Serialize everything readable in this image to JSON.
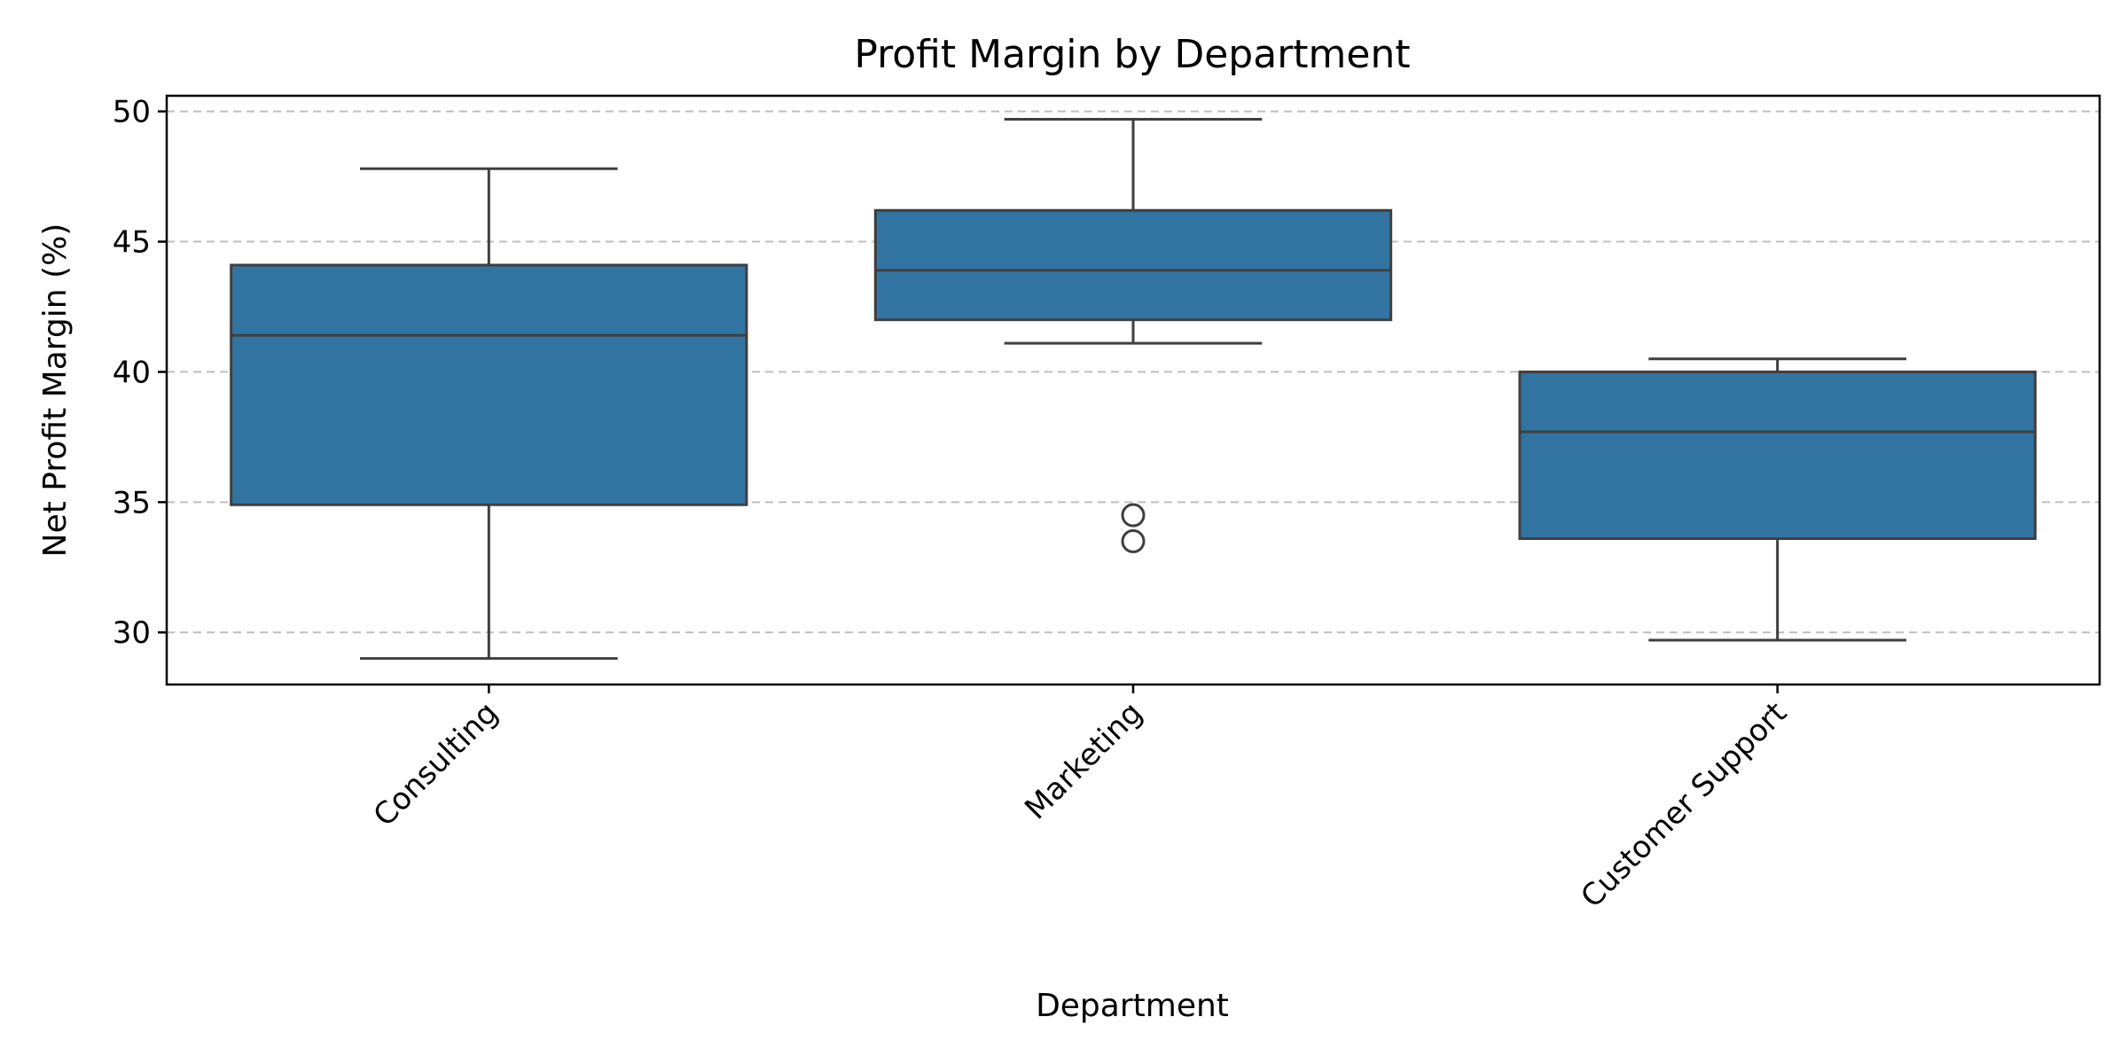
{
  "chart_data": {
    "type": "box",
    "title": "Profit Margin by Department",
    "xlabel": "Department",
    "ylabel": "Net Profit Margin (%)",
    "ylim": [
      28,
      50.6
    ],
    "yticks": [
      30,
      35,
      40,
      45,
      50
    ],
    "grid": "y-dashed",
    "box_color": "#3274a1",
    "categories": [
      "Consulting",
      "Marketing",
      "Customer Support"
    ],
    "boxes": [
      {
        "whisker_low": 29.0,
        "q1": 34.9,
        "median": 41.4,
        "q3": 44.1,
        "whisker_high": 47.8,
        "outliers": []
      },
      {
        "whisker_low": 41.1,
        "q1": 42.0,
        "median": 43.9,
        "q3": 46.2,
        "whisker_high": 49.7,
        "outliers": [
          34.5,
          33.5
        ]
      },
      {
        "whisker_low": 29.7,
        "q1": 33.6,
        "median": 37.7,
        "q3": 40.0,
        "whisker_high": 40.5,
        "outliers": []
      }
    ]
  }
}
